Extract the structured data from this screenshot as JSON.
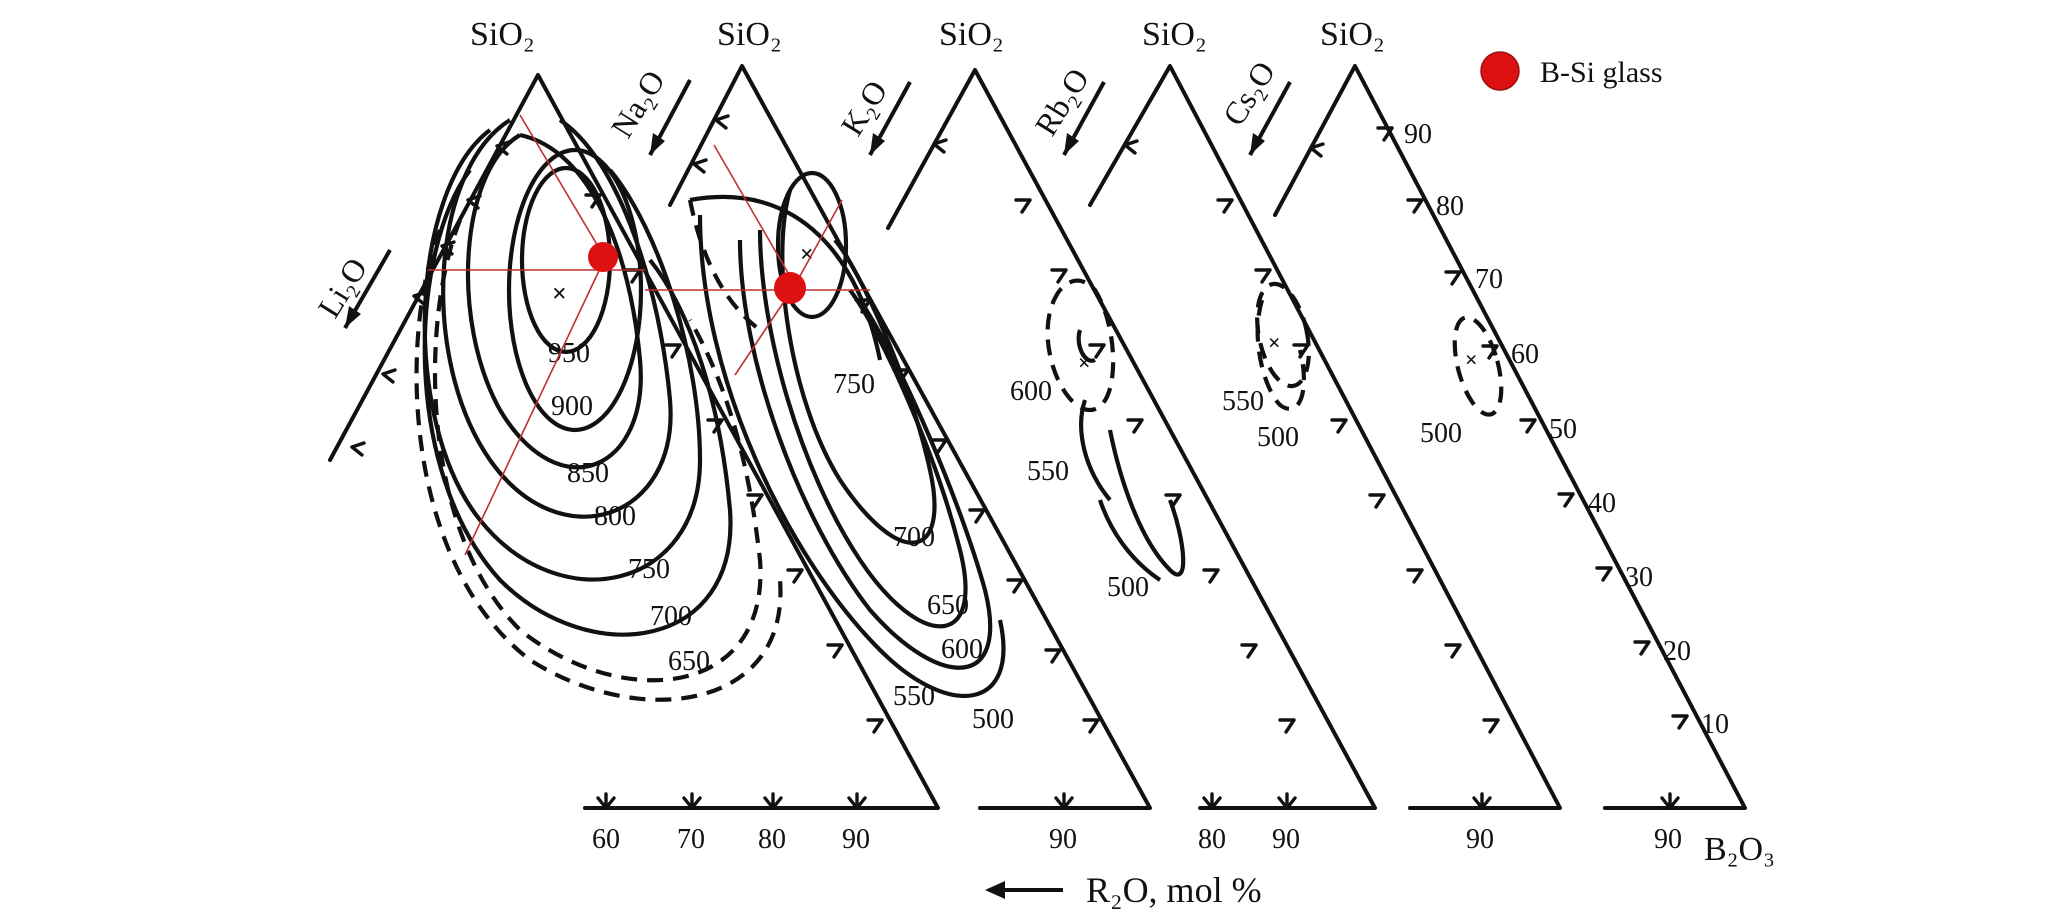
{
  "legend": {
    "marker_color": "#dd1111",
    "label": "B-Si glass"
  },
  "apex_labels": [
    "SiO₂",
    "SiO₂",
    "SiO₂",
    "SiO₂",
    "SiO₂"
  ],
  "oxide_labels": [
    "Li₂O",
    "Na₂O",
    "K₂O",
    "Rb₂O",
    "Cs₂O"
  ],
  "right_axis_ticks": [
    "90",
    "80",
    "70",
    "60",
    "50",
    "40",
    "30",
    "20",
    "10"
  ],
  "bottom_ticks": {
    "li": [
      "60",
      "70",
      "80",
      "90"
    ],
    "k": [
      "90"
    ],
    "rb": [
      "80",
      "90"
    ],
    "cs": [
      "90"
    ],
    "last": [
      "90"
    ]
  },
  "corner_label": "B₂O₃",
  "axis_title": "R₂O, mol %",
  "isotherms": {
    "li": [
      "950",
      "900",
      "850",
      "800",
      "750",
      "700",
      "650"
    ],
    "na": [
      "750",
      "700",
      "650",
      "600",
      "550",
      "500"
    ],
    "k": [
      "600",
      "550",
      "500"
    ],
    "rb": [
      "550",
      "500"
    ],
    "cs": [
      "500"
    ]
  }
}
